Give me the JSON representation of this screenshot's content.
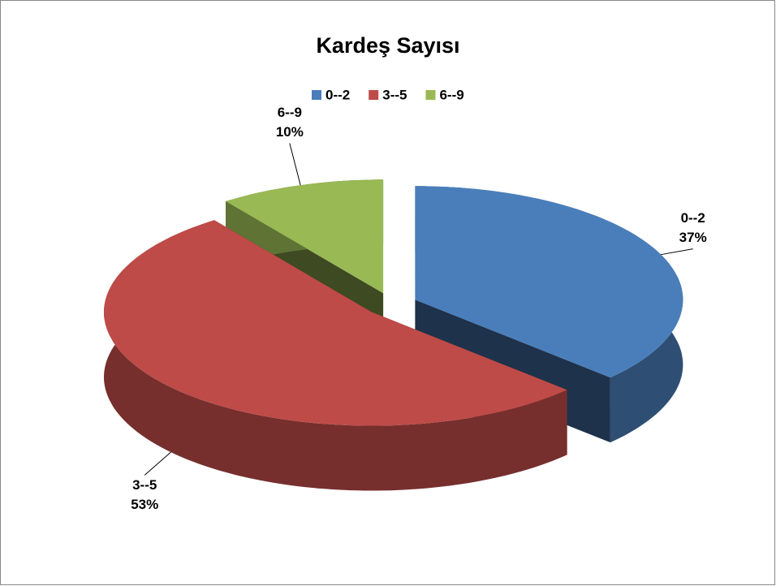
{
  "chart_data": {
    "type": "pie",
    "title": "Kardeş Sayısı",
    "categories": [
      "0--2",
      "3--5",
      "6--9"
    ],
    "values": [
      37,
      53,
      10
    ],
    "value_labels": [
      "37%",
      "53%",
      "10%"
    ],
    "colors": [
      "#4a7ebb",
      "#be4b48",
      "#98b954"
    ],
    "legend": "top"
  }
}
